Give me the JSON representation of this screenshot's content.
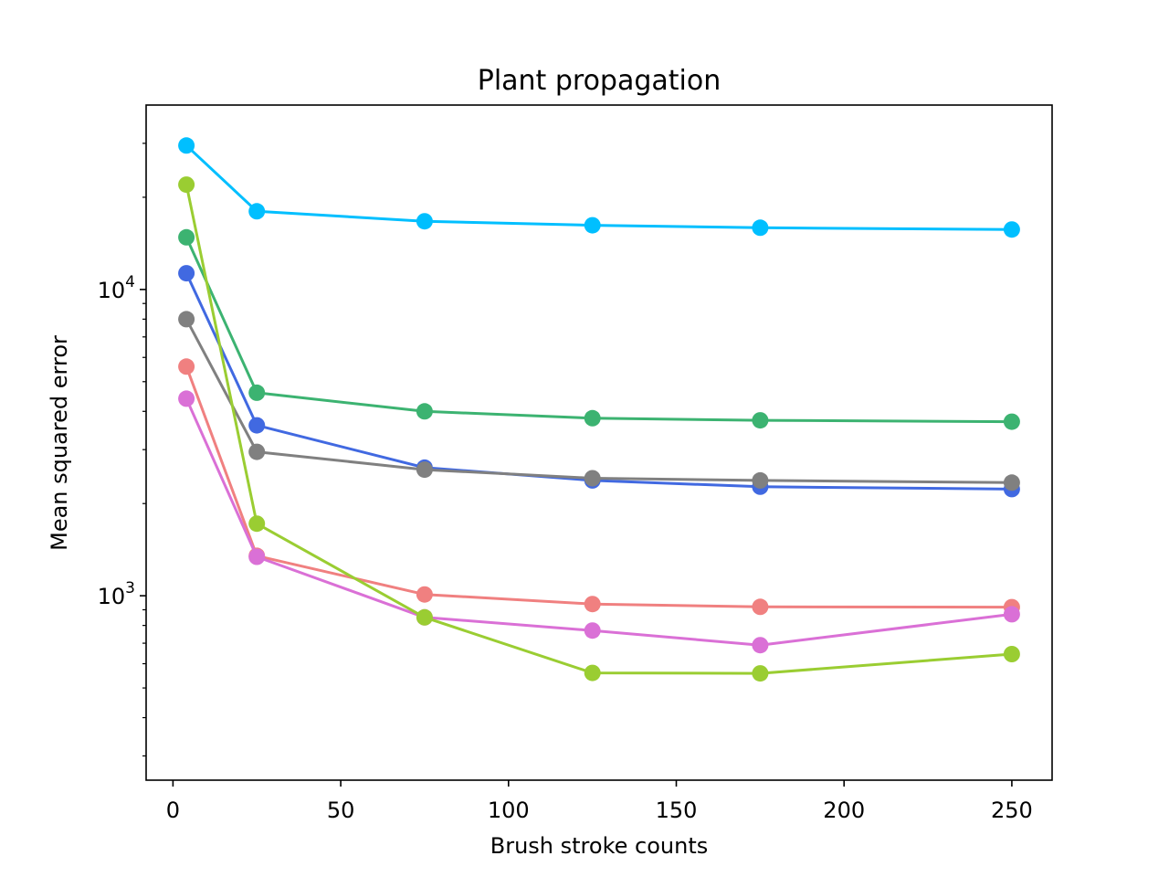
{
  "chart_data": {
    "type": "line",
    "title": "Plant propagation",
    "xlabel": "Brush stroke counts",
    "ylabel": "Mean squared error",
    "yscale": "log",
    "xlim": [
      -8,
      262
    ],
    "ylim": [
      250,
      40000
    ],
    "grid": false,
    "x": [
      4,
      25,
      75,
      125,
      175,
      250
    ],
    "x_ticks": [
      0,
      50,
      100,
      150,
      200,
      250
    ],
    "x_tick_labels": [
      "0",
      "50",
      "100",
      "150",
      "200",
      "250"
    ],
    "y_major_ticks": [
      1000,
      10000
    ],
    "y_tick_labels": [
      {
        "base": "10",
        "exp": "3"
      },
      {
        "base": "10",
        "exp": "4"
      }
    ],
    "y_minor_ticks": [
      300,
      400,
      500,
      600,
      700,
      800,
      900,
      2000,
      3000,
      4000,
      5000,
      6000,
      7000,
      8000,
      9000,
      20000,
      30000
    ],
    "series": [
      {
        "color": "#00bfff",
        "values": [
          29500,
          18000,
          16700,
          16200,
          15900,
          15700
        ]
      },
      {
        "color": "#3cb371",
        "values": [
          14800,
          4600,
          4000,
          3800,
          3740,
          3700
        ]
      },
      {
        "color": "#4169e1",
        "values": [
          11300,
          3600,
          2620,
          2380,
          2270,
          2230
        ]
      },
      {
        "color": "#808080",
        "values": [
          8000,
          2950,
          2580,
          2420,
          2380,
          2340
        ]
      },
      {
        "color": "#f08080",
        "values": [
          5600,
          1350,
          1010,
          940,
          920,
          918
        ]
      },
      {
        "color": "#da70d6",
        "values": [
          4400,
          1340,
          850,
          770,
          690,
          870
        ]
      },
      {
        "color": "#9acd32",
        "values": [
          22000,
          1720,
          850,
          560,
          558,
          645
        ]
      }
    ]
  }
}
